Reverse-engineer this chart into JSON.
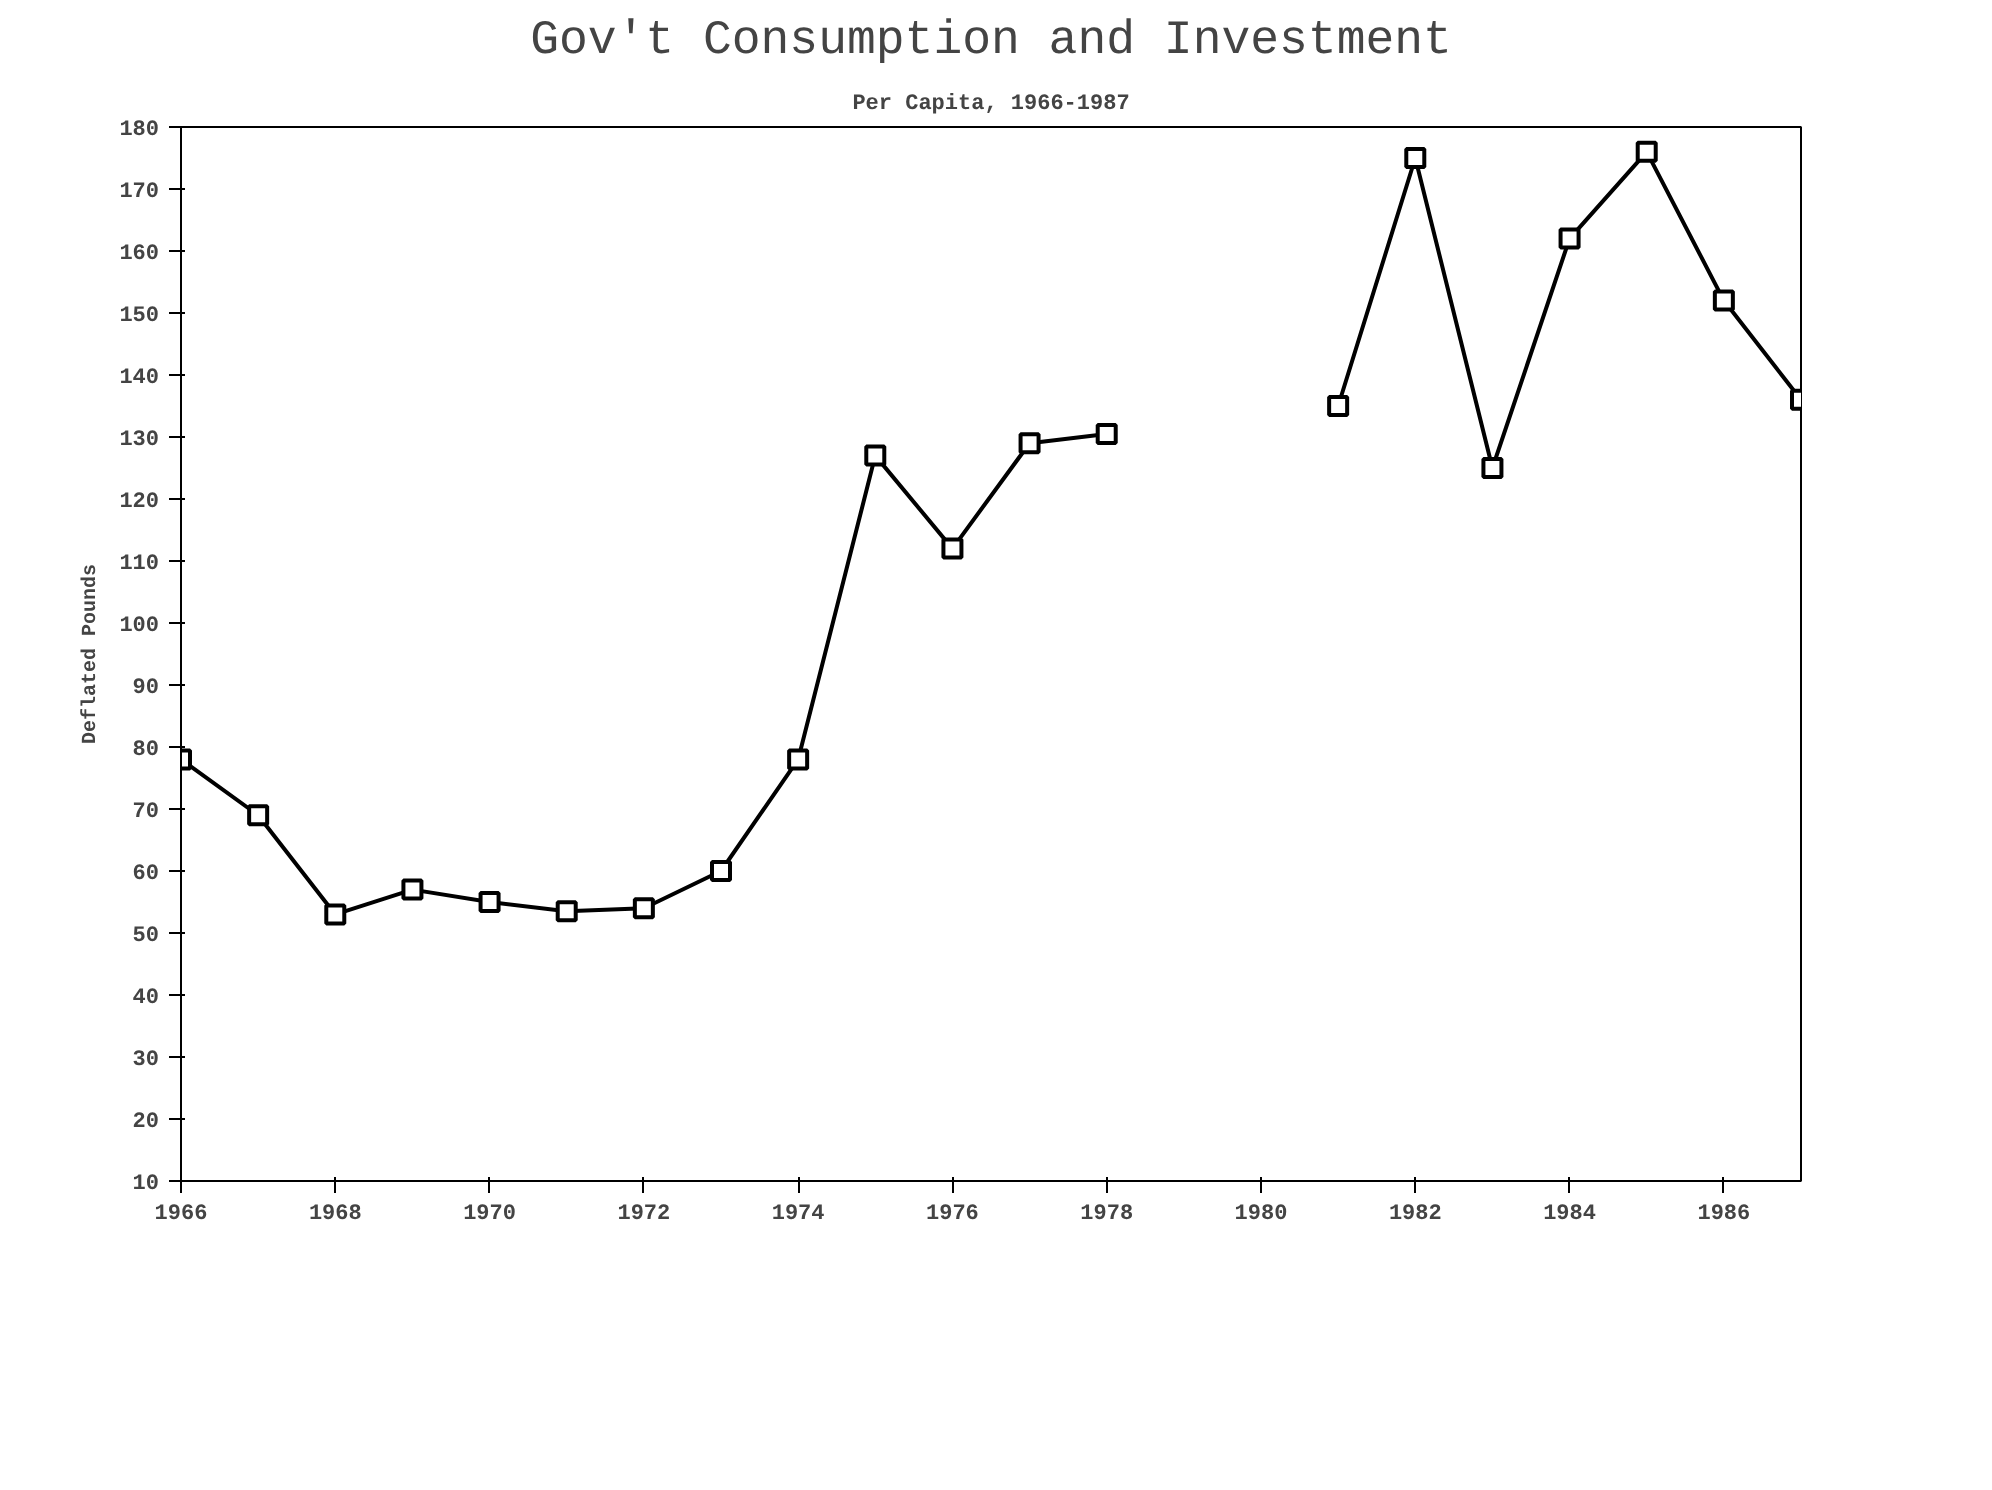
{
  "chart_data": {
    "type": "line",
    "title": "Gov't Consumption and Investment",
    "subtitle": "Per Capita, 1966-1987",
    "ylabel": "Deflated Pounds",
    "x": [
      1966,
      1967,
      1968,
      1969,
      1970,
      1971,
      1972,
      1973,
      1974,
      1975,
      1976,
      1977,
      1978,
      1979,
      1980,
      1981,
      1982,
      1983,
      1984,
      1985,
      1986,
      1987
    ],
    "series": [
      {
        "color": "#000000",
        "values": [
          78,
          69,
          53,
          57,
          55,
          53.5,
          54,
          60,
          78,
          127,
          112,
          129,
          130.5,
          null,
          null,
          135,
          175,
          125,
          162,
          176,
          152,
          136
        ]
      }
    ],
    "xlim": [
      1966,
      1987
    ],
    "xticks": [
      1966,
      1968,
      1970,
      1972,
      1974,
      1976,
      1978,
      1980,
      1982,
      1984,
      1986
    ],
    "ylim": [
      10,
      180
    ],
    "yticks": [
      10,
      20,
      30,
      40,
      50,
      60,
      70,
      80,
      90,
      100,
      110,
      120,
      130,
      140,
      150,
      160,
      170,
      180
    ],
    "grid": false,
    "marker": "square",
    "line_style": "solid"
  }
}
